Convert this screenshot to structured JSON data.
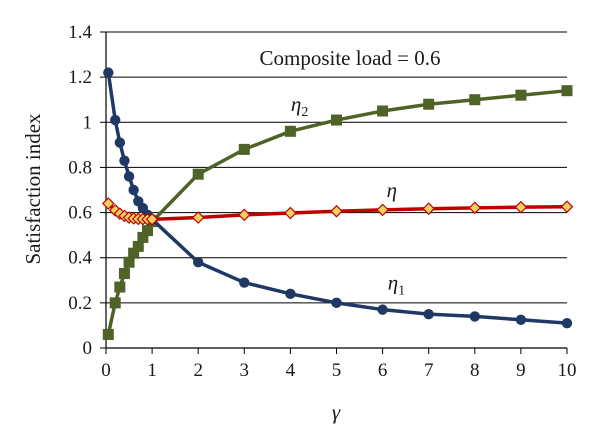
{
  "chart_data": {
    "type": "line",
    "title": "",
    "xlabel": "γ",
    "ylabel": "Satisfaction index",
    "xlim": [
      0,
      10
    ],
    "ylim": [
      0,
      1.4
    ],
    "xticks": [
      "0",
      "1",
      "2",
      "3",
      "4",
      "5",
      "6",
      "7",
      "8",
      "9",
      "10"
    ],
    "yticks": [
      "0",
      "0.2",
      "0.4",
      "0.6",
      "0.8",
      "1",
      "1.2",
      "1.4"
    ],
    "grid": "horizontal",
    "annotation": "Composite load = 0.6",
    "series": [
      {
        "name": "η1",
        "symbol": "η",
        "subscript": "1",
        "color": "#1f3864",
        "marker": "circle",
        "x": [
          0.05,
          0.2,
          0.3,
          0.4,
          0.5,
          0.6,
          0.7,
          0.8,
          0.9,
          1,
          2,
          3,
          4,
          5,
          6,
          7,
          8,
          9,
          10
        ],
        "y": [
          1.22,
          1.01,
          0.91,
          0.83,
          0.76,
          0.7,
          0.65,
          0.62,
          0.59,
          0.57,
          0.38,
          0.29,
          0.24,
          0.2,
          0.17,
          0.15,
          0.14,
          0.125,
          0.11
        ]
      },
      {
        "name": "η2",
        "symbol": "η",
        "subscript": "2",
        "color": "#4f6228",
        "marker": "square",
        "x": [
          0.05,
          0.2,
          0.3,
          0.4,
          0.5,
          0.6,
          0.7,
          0.8,
          0.9,
          1,
          2,
          3,
          4,
          5,
          6,
          7,
          8,
          9,
          10
        ],
        "y": [
          0.06,
          0.2,
          0.27,
          0.33,
          0.38,
          0.42,
          0.45,
          0.49,
          0.52,
          0.56,
          0.77,
          0.88,
          0.96,
          1.01,
          1.05,
          1.08,
          1.1,
          1.12,
          1.14
        ]
      },
      {
        "name": "η",
        "symbol": "η",
        "subscript": "",
        "color": "#c00000",
        "marker": "diamond",
        "marker_fill": "#f0d060",
        "x": [
          0.05,
          0.2,
          0.3,
          0.4,
          0.5,
          0.6,
          0.7,
          0.8,
          0.9,
          1,
          2,
          3,
          4,
          5,
          6,
          7,
          8,
          9,
          10
        ],
        "y": [
          0.64,
          0.61,
          0.595,
          0.585,
          0.578,
          0.574,
          0.572,
          0.571,
          0.57,
          0.57,
          0.578,
          0.59,
          0.598,
          0.606,
          0.612,
          0.617,
          0.621,
          0.624,
          0.626
        ]
      }
    ]
  }
}
